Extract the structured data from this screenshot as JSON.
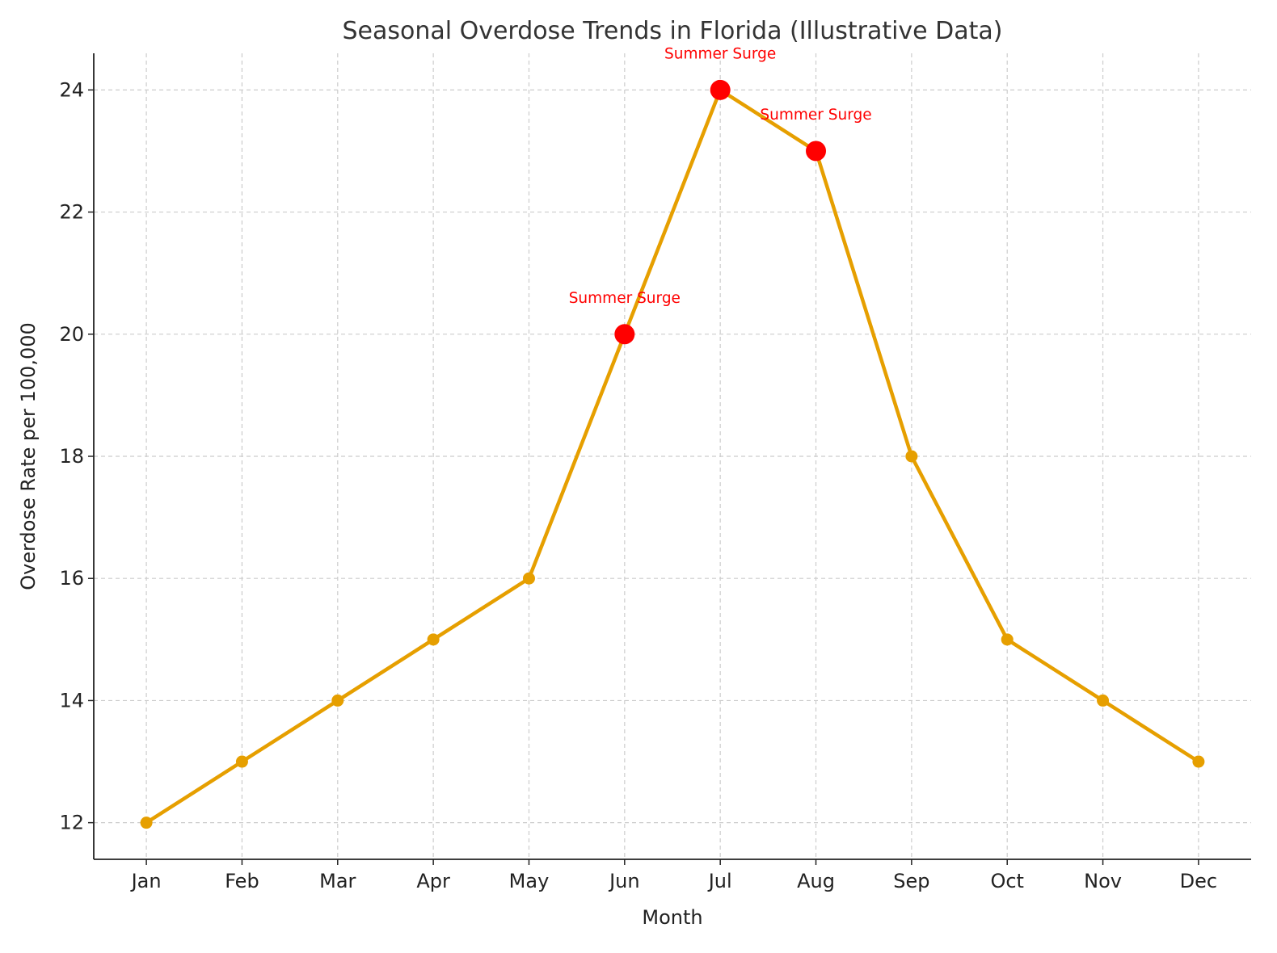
{
  "chart_data": {
    "type": "line",
    "title": "Seasonal Overdose Trends in Florida (Illustrative Data)",
    "xlabel": "Month",
    "ylabel": "Overdose Rate per 100,000",
    "categories": [
      "Jan",
      "Feb",
      "Mar",
      "Apr",
      "May",
      "Jun",
      "Jul",
      "Aug",
      "Sep",
      "Oct",
      "Nov",
      "Dec"
    ],
    "values": [
      12,
      13,
      14,
      15,
      16,
      20,
      24,
      23,
      18,
      15,
      14,
      13
    ],
    "ylim": [
      11.4,
      24.6
    ],
    "yticks": [
      12,
      14,
      16,
      18,
      20,
      22,
      24
    ],
    "grid": true,
    "line_color": "#E69F00",
    "highlight_color": "#FF0000",
    "highlights": [
      {
        "month": "Jun",
        "value": 20,
        "label": "Summer Surge"
      },
      {
        "month": "Jul",
        "value": 24,
        "label": "Summer Surge"
      },
      {
        "month": "Aug",
        "value": 23,
        "label": "Summer Surge"
      }
    ]
  }
}
